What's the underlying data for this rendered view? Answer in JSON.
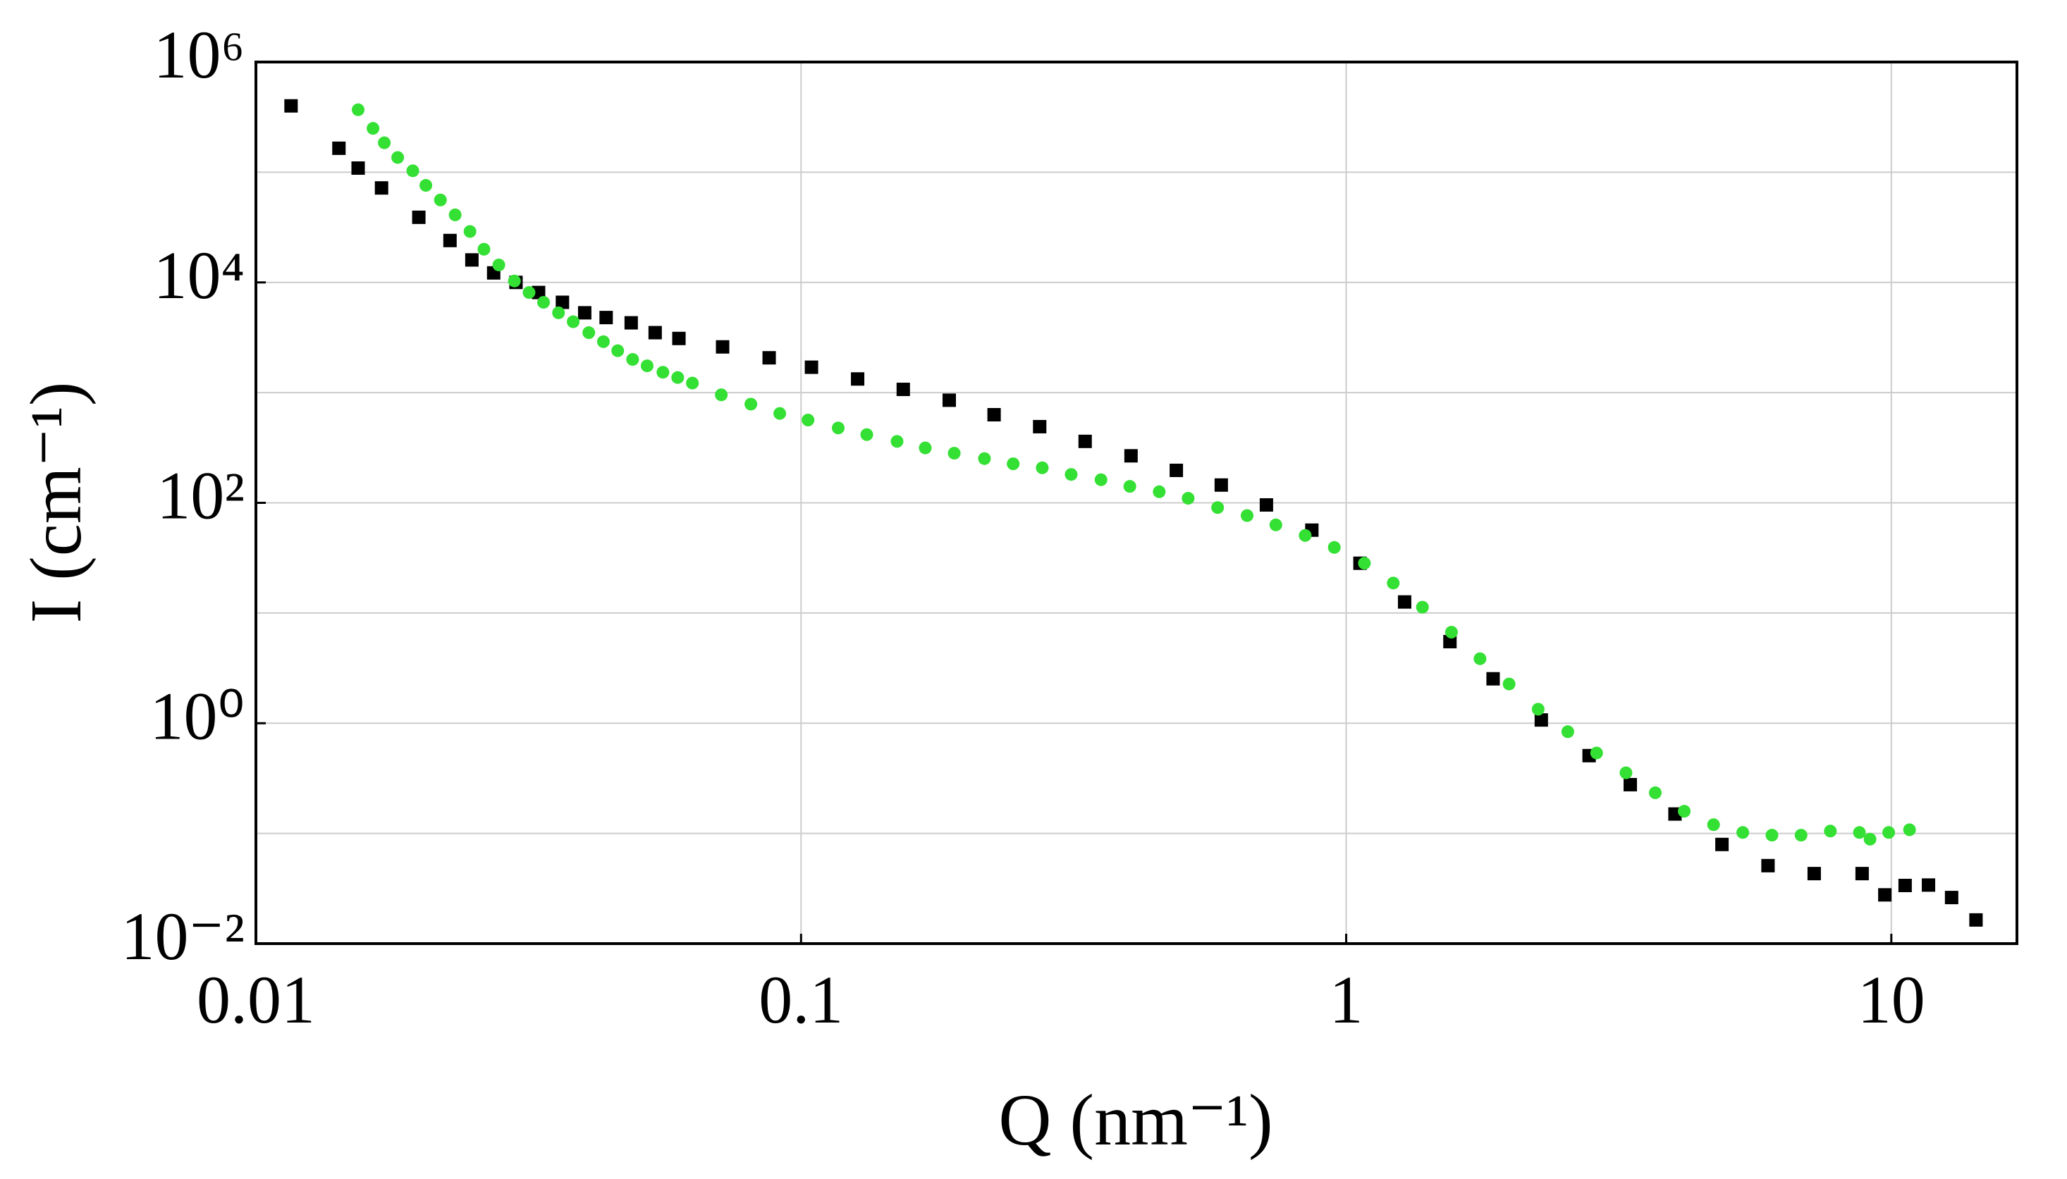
{
  "chart_data": {
    "type": "scatter",
    "x_label": "Q (nm⁻¹)",
    "y_label": "I (cm⁻¹)",
    "log_x": true,
    "log_y": true,
    "grid": true,
    "xlim": [
      0.01,
      17
    ],
    "ylim": [
      0.01,
      1000000
    ],
    "xticks": [
      0.01,
      0.1,
      1,
      10
    ],
    "yticks": [
      {
        "value": 0.01,
        "label": "10⁻²"
      },
      {
        "value": 1,
        "label": "10⁰"
      },
      {
        "value": 100,
        "label": "10²"
      },
      {
        "value": 10000,
        "label": "10⁴"
      },
      {
        "value": 1000000,
        "label": "10⁶"
      }
    ],
    "yminor": [
      0.1,
      10,
      1000,
      100000
    ],
    "series": [
      {
        "color": "#000000",
        "marker": "square",
        "x": [
          0.0116,
          0.0142,
          0.0154,
          0.017,
          0.0199,
          0.0227,
          0.0249,
          0.0273,
          0.03,
          0.033,
          0.0365,
          0.0401,
          0.0439,
          0.0488,
          0.054,
          0.0597,
          0.0718,
          0.0874,
          0.1045,
          0.127,
          0.154,
          0.187,
          0.226,
          0.274,
          0.332,
          0.403,
          0.488,
          0.59,
          0.714,
          0.865,
          1.06,
          1.28,
          1.55,
          1.86,
          2.28,
          2.79,
          3.32,
          4.01,
          4.89,
          5.94,
          7.22,
          8.84,
          9.73,
          10.6,
          11.7,
          12.9,
          14.3
        ],
        "values": [
          400000,
          165000,
          109000,
          72000,
          39000,
          24000,
          16000,
          12200,
          10000,
          8100,
          6600,
          5300,
          4800,
          4300,
          3500,
          3100,
          2600,
          2070,
          1700,
          1330,
          1070,
          853,
          630,
          491,
          361,
          267,
          197,
          145,
          95.7,
          56.5,
          28.3,
          12.6,
          5.5,
          2.53,
          1.07,
          0.508,
          0.277,
          0.15,
          0.0794,
          0.051,
          0.0432,
          0.0432,
          0.0277,
          0.0337,
          0.034,
          0.0262,
          0.0164
        ]
      },
      {
        "color": "#33e033",
        "marker": "circle",
        "x": [
          0.0154,
          0.0164,
          0.0172,
          0.0182,
          0.0194,
          0.0205,
          0.0218,
          0.0232,
          0.0247,
          0.0262,
          0.0279,
          0.0298,
          0.0317,
          0.0337,
          0.0359,
          0.0382,
          0.0408,
          0.0434,
          0.0461,
          0.0491,
          0.0522,
          0.0558,
          0.0594,
          0.0632,
          0.0714,
          0.0809,
          0.0914,
          0.103,
          0.117,
          0.132,
          0.15,
          0.169,
          0.191,
          0.217,
          0.245,
          0.277,
          0.313,
          0.355,
          0.401,
          0.454,
          0.513,
          0.581,
          0.658,
          0.743,
          0.841,
          0.951,
          1.08,
          1.22,
          1.38,
          1.56,
          1.76,
          1.99,
          2.25,
          2.55,
          2.88,
          3.26,
          3.69,
          4.17,
          4.72,
          5.34,
          6.04,
          6.83,
          7.73,
          8.74,
          9.14,
          9.89,
          10.8
        ],
        "values": [
          369000,
          250000,
          185000,
          136000,
          103000,
          76000,
          56000,
          41000,
          29000,
          20000,
          14400,
          10300,
          8100,
          6600,
          5300,
          4400,
          3500,
          2900,
          2400,
          2000,
          1750,
          1530,
          1370,
          1220,
          955,
          786,
          647,
          564,
          478,
          416,
          361,
          315,
          282,
          252,
          226,
          208,
          181,
          162,
          141,
          126,
          110,
          90.6,
          76.6,
          63.1,
          50.6,
          39.4,
          28.3,
          18.7,
          11.3,
          6.7,
          3.85,
          2.27,
          1.34,
          0.838,
          0.537,
          0.355,
          0.234,
          0.159,
          0.12,
          0.102,
          0.0964,
          0.0964,
          0.105,
          0.102,
          0.0887,
          0.102,
          0.108
        ]
      }
    ]
  }
}
